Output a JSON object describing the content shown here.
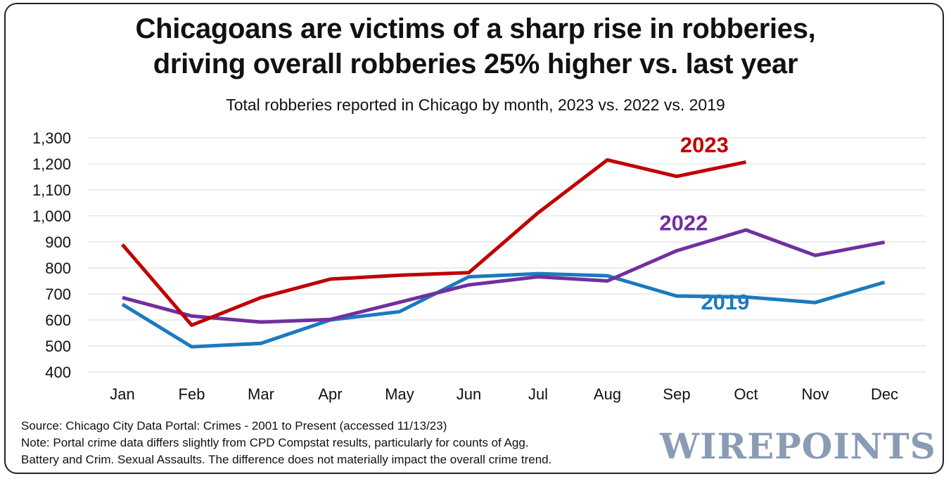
{
  "chart_data": {
    "type": "line",
    "title": "Chicagoans are victims of a sharp rise in robberies,",
    "title_line2": "driving overall robberies 25% higher vs. last year",
    "subtitle": "Total robberies reported in Chicago by month, 2023 vs. 2022 vs. 2019",
    "categories": [
      "Jan",
      "Feb",
      "Mar",
      "Apr",
      "May",
      "Jun",
      "Jul",
      "Aug",
      "Sep",
      "Oct",
      "Nov",
      "Dec"
    ],
    "ylim": [
      400,
      1300
    ],
    "yticks": [
      400,
      500,
      600,
      700,
      800,
      900,
      1000,
      1100,
      1200,
      1300
    ],
    "ytick_labels": [
      "400",
      "500",
      "600",
      "700",
      "800",
      "900",
      "1,000",
      "1,100",
      "1,200",
      "1,300"
    ],
    "grid": true,
    "series": [
      {
        "name": "2019",
        "color": "#1a7abf",
        "values": [
          660,
          497,
          510,
          600,
          632,
          766,
          778,
          770,
          692,
          688,
          667,
          745
        ]
      },
      {
        "name": "2022",
        "color": "#7030a0",
        "values": [
          686,
          615,
          592,
          602,
          668,
          735,
          766,
          750,
          866,
          946,
          848,
          899
        ]
      },
      {
        "name": "2023",
        "color": "#c00000",
        "values": [
          890,
          580,
          686,
          757,
          772,
          782,
          1012,
          1215,
          1152,
          1207,
          null,
          null
        ]
      }
    ],
    "series_label_anchors": {
      "2023": [
        8.4,
        1245
      ],
      "2022": [
        8.1,
        944
      ],
      "2019": [
        8.7,
        640
      ]
    }
  },
  "source_note": "Source: Chicago City Data Portal: Crimes - 2001 to Present (accessed 11/13/23)",
  "note_line1": "Note: Portal crime data differs slightly from CPD Compstat results, particularly for counts of Agg.",
  "note_line2": "Battery and Crim. Sexual Assaults. The difference does not materially impact the overall crime trend.",
  "logo_text": "WIREPOINTS"
}
